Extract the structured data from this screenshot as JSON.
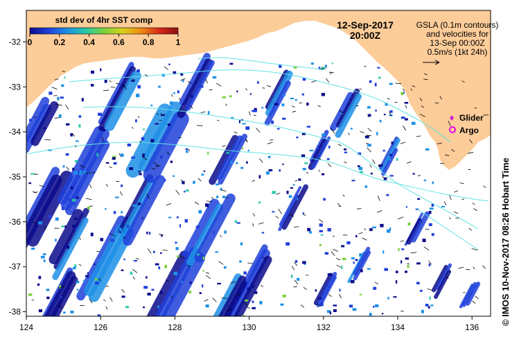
{
  "title": {
    "date": "12-Sep-2017",
    "time": "20:00Z"
  },
  "colorbar": {
    "label": "std dev of 4hr SST comp",
    "tick_labels": [
      "0",
      "0.2",
      "0.4",
      "0.6",
      "0.8",
      "1"
    ],
    "min": 0,
    "max": 1,
    "colormap": [
      "#0a0a8c",
      "#1f3fd9",
      "#1d8fe6",
      "#27c7a8",
      "#79d23d",
      "#d8d21c",
      "#f08a12",
      "#d7281a",
      "#8c0f0f"
    ]
  },
  "gsla_note": {
    "lines": [
      "GSLA (0.1m contours)",
      "and velocities for",
      "13-Sep 00:00Z",
      "0.5m/s (1kt 24h)"
    ]
  },
  "legend": {
    "glider": {
      "label": "Glider",
      "color": "#d51dd5"
    },
    "argo": {
      "label": "Argo",
      "color": "#e600e6"
    }
  },
  "axes": {
    "x_ticks": [
      "124",
      "126",
      "128",
      "130",
      "132",
      "134",
      "136"
    ],
    "y_ticks": [
      "-32",
      "-33",
      "-34",
      "-35",
      "-36",
      "-37",
      "-38"
    ],
    "lon_range": [
      124,
      136.5
    ],
    "lat_range": [
      -38.1,
      -31.3
    ]
  },
  "colors": {
    "land": "#fccc99",
    "ocean": "#ffffff",
    "contour": "#5fe3e3",
    "sst_dark": "#0a0a8c",
    "sst_mid": "#1f3fd9",
    "sst_light": "#1d8fe6"
  },
  "credit": "IMOS 10-Nov-2017 08:26 Hobart Time",
  "copyright_symbol": "©"
}
